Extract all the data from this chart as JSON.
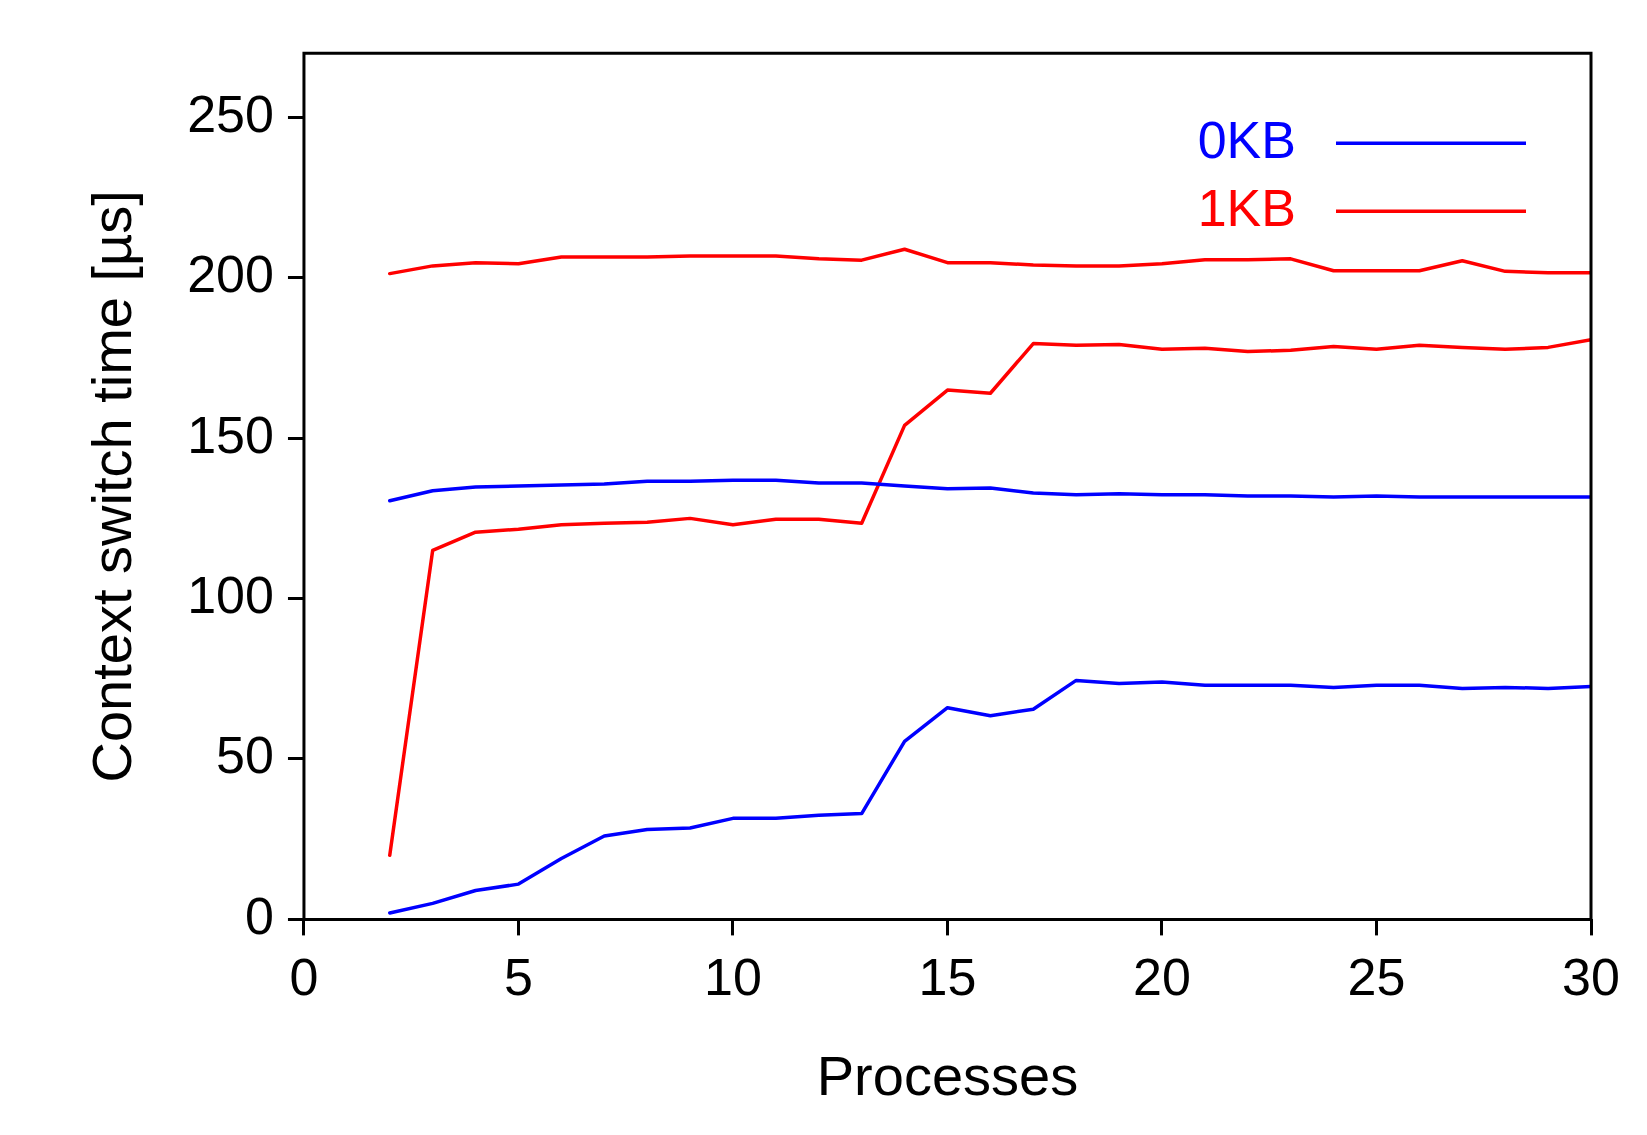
{
  "chart_data": {
    "type": "line",
    "xlabel": "Processes",
    "ylabel": "Context switch time [µs]",
    "xlim": [
      0,
      30
    ],
    "xticks": [
      0,
      5,
      10,
      15,
      20,
      25,
      30
    ],
    "ylim": [
      0,
      270
    ],
    "yticks": [
      0,
      50,
      100,
      150,
      200,
      250
    ],
    "grid": false,
    "legend": "top right",
    "marker": "none",
    "line_style": "solid",
    "x": [
      2,
      3,
      4,
      5,
      6,
      7,
      8,
      9,
      10,
      11,
      12,
      13,
      14,
      15,
      16,
      17,
      18,
      19,
      20,
      21,
      22,
      23,
      24,
      25,
      26,
      27,
      28,
      29,
      30
    ],
    "series": [
      {
        "name": "0KB",
        "color": "#0000ff",
        "values": [
          130.5,
          133.6,
          134.8,
          135.1,
          135.4,
          135.7,
          136.6,
          136.6,
          136.9,
          136.9,
          136,
          136,
          135.1,
          134.2,
          134.5,
          132.9,
          132.4,
          132.7,
          132.4,
          132.4,
          132,
          132,
          131.7,
          132,
          131.7,
          131.7,
          131.7,
          131.7,
          131.7
        ]
      },
      {
        "color": "#0000ff",
        "values": [
          2,
          5,
          9,
          11,
          19,
          26,
          28,
          28.5,
          31.5,
          31.5,
          32.5,
          33,
          55.5,
          66,
          63.5,
          65.5,
          74.5,
          73.5,
          74,
          73,
          73,
          73,
          72.3,
          73,
          73,
          72,
          72.3,
          72,
          72.6
        ]
      },
      {
        "name": "1KB",
        "color": "#ff0000",
        "values": [
          201.3,
          203.7,
          204.7,
          204.4,
          206.5,
          206.5,
          206.5,
          206.8,
          206.8,
          206.8,
          205.9,
          205.5,
          208.9,
          204.7,
          204.7,
          204,
          203.7,
          203.7,
          204.4,
          205.6,
          205.6,
          205.9,
          202.2,
          202.2,
          202.2,
          205.3,
          202,
          201.6,
          201.6
        ]
      },
      {
        "color": "#ff0000",
        "values": [
          20,
          115,
          120.7,
          121.6,
          123,
          123.5,
          123.8,
          125,
          123,
          124.7,
          124.7,
          123.5,
          154,
          165,
          164,
          179.5,
          179,
          179.2,
          177.7,
          178,
          177,
          177.4,
          178.6,
          177.7,
          179,
          178.3,
          177.7,
          178.3,
          180.7
        ]
      }
    ]
  }
}
